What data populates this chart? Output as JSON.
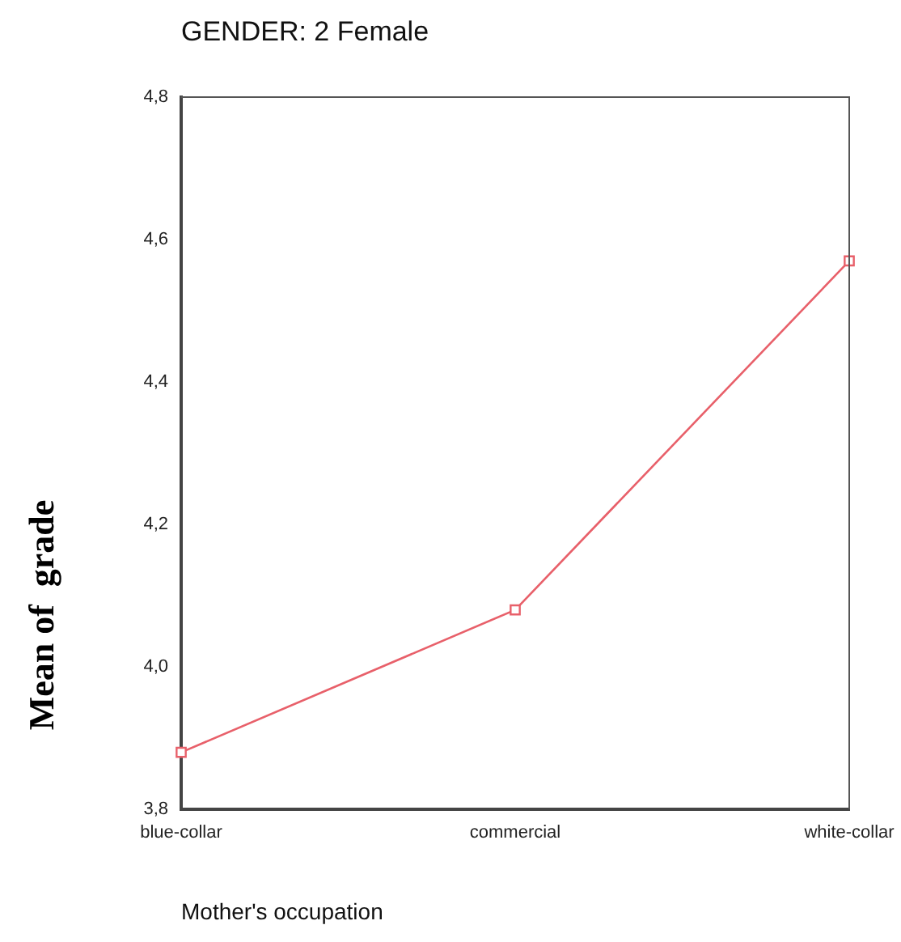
{
  "chart_data": {
    "type": "line",
    "title": "GENDER:   2  Female",
    "xlabel": "Mother's occupation",
    "ylabel": "Mean of  grade",
    "categories": [
      "blue-collar",
      "commercial",
      "white-collar"
    ],
    "series": [
      {
        "color": "#e8606a",
        "values": [
          3.88,
          4.08,
          4.57
        ]
      }
    ],
    "ylim": [
      3.8,
      4.8
    ],
    "yticks": [
      {
        "value": 3.8,
        "label": "3,8"
      },
      {
        "value": 4.0,
        "label": "4,0"
      },
      {
        "value": 4.2,
        "label": "4,2"
      },
      {
        "value": 4.4,
        "label": "4,4"
      },
      {
        "value": 4.6,
        "label": "4,6"
      },
      {
        "value": 4.8,
        "label": "4,8"
      }
    ],
    "grid": false,
    "legend": false,
    "marker": "square",
    "line_style": "solid"
  }
}
